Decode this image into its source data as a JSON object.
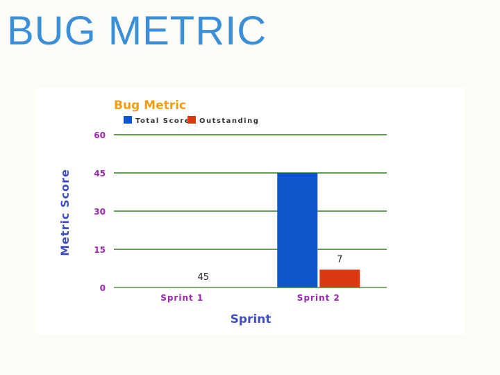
{
  "slide": {
    "title": "BUG METRIC"
  },
  "chart_data": {
    "type": "bar",
    "title": "Bug Metric",
    "xlabel": "Sprint",
    "ylabel": "Metric Score",
    "categories": [
      "Sprint 1",
      "Sprint 2"
    ],
    "series": [
      {
        "name": "Total Score",
        "values": [
          0,
          45
        ],
        "color": "#1155cc"
      },
      {
        "name": "Outstanding",
        "values": [
          0,
          7
        ],
        "color": "#dc3912"
      }
    ],
    "data_labels": [
      null,
      "45",
      null,
      "7"
    ],
    "ylim": [
      0,
      60
    ],
    "yticks": [
      "0",
      "15",
      "30",
      "45",
      "60"
    ],
    "grid": true,
    "legend": "top-left",
    "colors": {
      "title": "#f39c12",
      "axis_text": "#9b27b0",
      "axis_title": "#3f4fc0",
      "grid": "#2e7d1f"
    }
  }
}
